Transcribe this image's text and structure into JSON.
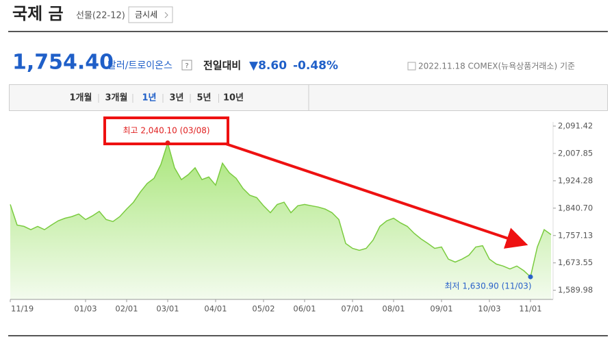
{
  "header": {
    "title": "국제 금",
    "subtitle": "선물(22-12)",
    "button": "금시세"
  },
  "quote": {
    "price": "1,754.40",
    "unit": "달러/트로이온스",
    "help": "?",
    "change_label": "전일대비",
    "change": "▼8.60",
    "change_pct": "-0.48%",
    "date_note": "2022.11.18 COMEX(뉴욕상품거래소) 기준"
  },
  "tabs": {
    "items": [
      "1개월",
      "3개월",
      "1년",
      "3년",
      "5년",
      "10년"
    ],
    "active": 2
  },
  "chart_data": {
    "type": "area",
    "color": "#7acb3f",
    "categories": [
      "11/19",
      null,
      null,
      null,
      null,
      null,
      null,
      null,
      null,
      null,
      null,
      "01/03",
      null,
      null,
      null,
      null,
      null,
      "02/01",
      null,
      null,
      null,
      null,
      null,
      "03/01",
      null,
      null,
      null,
      null,
      null,
      null,
      "04/01",
      null,
      null,
      null,
      null,
      null,
      null,
      "05/02",
      null,
      null,
      null,
      null,
      null,
      "06/01",
      null,
      null,
      null,
      null,
      null,
      null,
      "07/01",
      null,
      null,
      null,
      null,
      null,
      "08/01",
      null,
      null,
      null,
      null,
      null,
      null,
      "09/01",
      null,
      null,
      null,
      null,
      null,
      null,
      "10/03",
      null,
      null,
      null,
      null,
      null,
      "11/01",
      null,
      null,
      null
    ],
    "values": [
      1852,
      1789,
      1785,
      1775,
      1785,
      1775,
      1789,
      1802,
      1810,
      1815,
      1823,
      1806,
      1817,
      1831,
      1806,
      1800,
      1815,
      1838,
      1859,
      1890,
      1916,
      1932,
      1974,
      2040.1,
      1964,
      1928,
      1943,
      1964,
      1928,
      1936,
      1911,
      1978,
      1949,
      1932,
      1901,
      1880,
      1873,
      1848,
      1827,
      1852,
      1859,
      1827,
      1848,
      1852,
      1848,
      1844,
      1838,
      1827,
      1806,
      1733,
      1718,
      1712,
      1718,
      1743,
      1785,
      1802,
      1810,
      1796,
      1785,
      1764,
      1747,
      1733,
      1718,
      1722,
      1685,
      1676,
      1685,
      1697,
      1722,
      1726,
      1685,
      1670,
      1664,
      1655,
      1664,
      1650,
      1630.9,
      1722,
      1775,
      1760
    ],
    "ylim": [
      1562,
      2104
    ],
    "yticks": [
      {
        "value": 2091.42,
        "label": "2,091.42"
      },
      {
        "value": 2007.85,
        "label": "2,007.85"
      },
      {
        "value": 1924.28,
        "label": "1,924.28"
      },
      {
        "value": 1840.7,
        "label": "1,840.70"
      },
      {
        "value": 1757.13,
        "label": "1,757.13"
      },
      {
        "value": 1673.55,
        "label": "1,673.55"
      },
      {
        "value": 1589.98,
        "label": "1,589.98"
      }
    ],
    "high_label": "최고 2,040.10 (03/08)",
    "low_label": "최저 1,630.90 (11/03)"
  }
}
